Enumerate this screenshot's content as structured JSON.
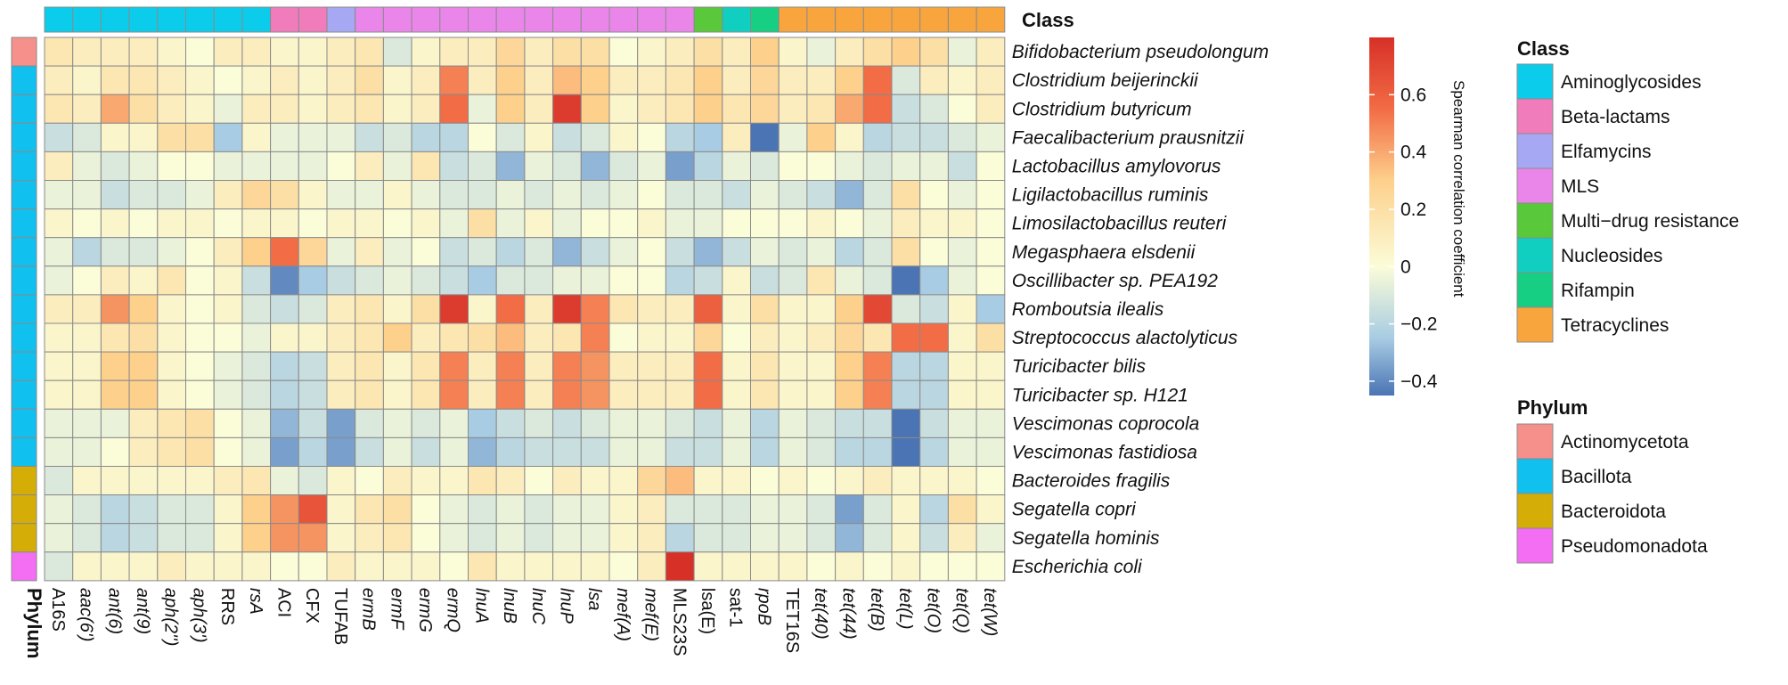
{
  "chart_data": {
    "type": "heatmap",
    "title": "",
    "columns": [
      "A16S",
      "aac(6')",
      "ant(6)",
      "ant(9)",
      "aph(2'')",
      "aph(3')",
      "RRS",
      "rsA",
      "ACI",
      "CFX",
      "TUFAB",
      "ermB",
      "ermF",
      "ermG",
      "ermQ",
      "lnuA",
      "lnuB",
      "lnuC",
      "lnuP",
      "lsa",
      "mef(A)",
      "mef(E)",
      "MLS23S",
      "lsa(E)",
      "sat-1",
      "rpoB",
      "TET16S",
      "tet(40)",
      "tet(44)",
      "tet(B)",
      "tet(L)",
      "tet(O)",
      "tet(Q)",
      "tet(W)"
    ],
    "column_italic": [
      false,
      true,
      true,
      true,
      true,
      true,
      false,
      true,
      false,
      false,
      false,
      true,
      true,
      true,
      true,
      true,
      true,
      true,
      true,
      true,
      true,
      true,
      false,
      false,
      false,
      true,
      false,
      true,
      true,
      true,
      true,
      true,
      true,
      true
    ],
    "column_class": [
      "Aminoglycosides",
      "Aminoglycosides",
      "Aminoglycosides",
      "Aminoglycosides",
      "Aminoglycosides",
      "Aminoglycosides",
      "Aminoglycosides",
      "Aminoglycosides",
      "Beta-lactams",
      "Beta-lactams",
      "Elfamycins",
      "MLS",
      "MLS",
      "MLS",
      "MLS",
      "MLS",
      "MLS",
      "MLS",
      "MLS",
      "MLS",
      "MLS",
      "MLS",
      "MLS",
      "Multi−drug resistance",
      "Nucleosides",
      "Rifampin",
      "Tetracyclines",
      "Tetracyclines",
      "Tetracyclines",
      "Tetracyclines",
      "Tetracyclines",
      "Tetracyclines",
      "Tetracyclines",
      "Tetracyclines"
    ],
    "rows": [
      "Bifidobacterium pseudolongum",
      "Clostridium beijerinckii",
      "Clostridium butyricum",
      "Faecalibacterium prausnitzii",
      "Lactobacillus amylovorus",
      "Ligilactobacillus ruminis",
      "Limosilactobacillus reuteri",
      "Megasphaera elsdenii",
      "Oscillibacter sp. PEA192",
      "Romboutsia ilealis",
      "Streptococcus alactolyticus",
      "Turicibacter bilis",
      "Turicibacter sp. H121",
      "Vescimonas coprocola",
      "Vescimonas fastidiosa",
      "Bacteroides fragilis",
      "Segatella copri",
      "Segatella hominis",
      "Escherichia coli"
    ],
    "row_phylum": [
      "Actinomycetota",
      "Bacillota",
      "Bacillota",
      "Bacillota",
      "Bacillota",
      "Bacillota",
      "Bacillota",
      "Bacillota",
      "Bacillota",
      "Bacillota",
      "Bacillota",
      "Bacillota",
      "Bacillota",
      "Bacillota",
      "Bacillota",
      "Bacteroidota",
      "Bacteroidota",
      "Bacteroidota",
      "Pseudomonadota"
    ],
    "values": [
      [
        0.15,
        0.1,
        0.1,
        0.1,
        0.05,
        0.0,
        0.1,
        0.1,
        0.05,
        0.05,
        0.1,
        0.15,
        -0.1,
        0.05,
        0.1,
        0.1,
        0.25,
        0.1,
        0.2,
        0.2,
        0.0,
        0.05,
        0.1,
        0.2,
        0.1,
        0.3,
        0.05,
        -0.05,
        0.1,
        0.2,
        0.3,
        0.2,
        -0.05,
        0.1
      ],
      [
        0.1,
        0.05,
        0.15,
        0.15,
        0.1,
        0.05,
        0.0,
        0.05,
        0.1,
        0.05,
        0.1,
        0.2,
        0.05,
        0.1,
        0.5,
        0.1,
        0.3,
        0.1,
        0.35,
        0.3,
        0.1,
        0.1,
        0.15,
        0.3,
        0.1,
        0.25,
        0.1,
        0.1,
        0.3,
        0.55,
        -0.1,
        0.1,
        0.05,
        0.1
      ],
      [
        0.15,
        0.1,
        0.4,
        0.2,
        0.1,
        0.05,
        -0.05,
        0.1,
        0.1,
        0.05,
        0.1,
        0.15,
        0.05,
        0.1,
        0.55,
        -0.05,
        0.3,
        0.1,
        0.75,
        0.3,
        0.05,
        0.1,
        0.15,
        0.3,
        0.15,
        0.25,
        0.1,
        0.15,
        0.4,
        0.55,
        -0.15,
        -0.1,
        0.0,
        0.1
      ],
      [
        -0.15,
        -0.1,
        0.05,
        0.05,
        0.2,
        0.2,
        -0.25,
        0.05,
        -0.05,
        -0.05,
        -0.05,
        -0.15,
        -0.1,
        -0.2,
        -0.2,
        0.0,
        -0.1,
        0.05,
        -0.15,
        -0.1,
        0.05,
        0.0,
        -0.2,
        -0.25,
        0.1,
        -0.45,
        -0.05,
        0.3,
        0.05,
        -0.2,
        -0.15,
        -0.15,
        -0.1,
        -0.05
      ],
      [
        0.1,
        -0.05,
        -0.1,
        -0.05,
        0.0,
        0.0,
        -0.05,
        -0.05,
        -0.05,
        -0.05,
        0.0,
        0.1,
        -0.05,
        0.15,
        -0.15,
        -0.1,
        -0.3,
        -0.05,
        -0.1,
        -0.3,
        -0.1,
        -0.05,
        -0.35,
        -0.2,
        -0.05,
        -0.1,
        0.0,
        0.0,
        -0.05,
        -0.1,
        -0.05,
        -0.05,
        -0.15,
        0.0
      ],
      [
        -0.05,
        -0.05,
        -0.15,
        -0.1,
        -0.1,
        -0.05,
        0.1,
        0.25,
        0.2,
        0.05,
        -0.05,
        -0.05,
        0.05,
        -0.05,
        -0.1,
        -0.1,
        -0.05,
        -0.1,
        -0.05,
        -0.1,
        -0.05,
        0.0,
        -0.1,
        -0.1,
        -0.15,
        -0.05,
        -0.1,
        -0.15,
        -0.3,
        -0.1,
        0.2,
        0.0,
        -0.05,
        0.0
      ],
      [
        0.05,
        0.0,
        0.05,
        0.0,
        0.05,
        0.05,
        0.0,
        0.05,
        0.05,
        0.0,
        0.05,
        0.05,
        0.0,
        0.05,
        -0.05,
        0.2,
        -0.05,
        0.05,
        -0.05,
        0.0,
        0.0,
        0.05,
        -0.05,
        -0.05,
        0.0,
        0.0,
        0.0,
        0.05,
        0.0,
        -0.05,
        0.1,
        0.05,
        0.05,
        0.0
      ],
      [
        -0.05,
        -0.2,
        -0.1,
        -0.1,
        -0.05,
        0.0,
        0.1,
        0.3,
        0.55,
        0.25,
        -0.05,
        0.1,
        -0.05,
        0.0,
        -0.15,
        -0.1,
        -0.2,
        -0.1,
        -0.3,
        -0.15,
        -0.05,
        0.0,
        -0.15,
        -0.3,
        -0.15,
        -0.05,
        -0.1,
        -0.05,
        -0.2,
        -0.1,
        0.2,
        0.0,
        -0.05,
        0.0
      ],
      [
        -0.05,
        0.0,
        0.1,
        0.05,
        0.15,
        0.0,
        0.05,
        -0.15,
        -0.4,
        -0.25,
        -0.15,
        -0.1,
        -0.05,
        -0.1,
        -0.15,
        -0.25,
        -0.1,
        -0.1,
        -0.05,
        -0.05,
        0.0,
        0.0,
        -0.2,
        -0.15,
        0.05,
        -0.15,
        -0.1,
        0.15,
        -0.05,
        -0.1,
        -0.45,
        -0.25,
        -0.05,
        0.0
      ],
      [
        0.1,
        0.1,
        0.45,
        0.3,
        0.05,
        0.0,
        0.05,
        -0.1,
        -0.15,
        -0.1,
        0.1,
        0.15,
        0.05,
        0.2,
        0.75,
        0.05,
        0.55,
        0.1,
        0.75,
        0.5,
        0.15,
        0.1,
        0.1,
        0.6,
        0.05,
        0.2,
        0.05,
        0.05,
        0.3,
        0.7,
        -0.1,
        -0.15,
        0.05,
        -0.25
      ],
      [
        0.05,
        0.05,
        0.15,
        0.2,
        0.05,
        0.0,
        0.0,
        -0.05,
        0.05,
        0.05,
        0.1,
        0.15,
        0.3,
        0.1,
        0.15,
        0.2,
        0.35,
        0.1,
        0.15,
        0.5,
        0.0,
        0.05,
        0.05,
        0.25,
        0.0,
        0.1,
        0.05,
        0.1,
        0.25,
        0.15,
        0.55,
        0.55,
        0.05,
        0.2
      ],
      [
        0.05,
        0.05,
        0.3,
        0.3,
        0.05,
        0.0,
        -0.05,
        -0.1,
        -0.2,
        -0.15,
        0.1,
        0.15,
        0.05,
        0.15,
        0.5,
        0.1,
        0.5,
        0.1,
        0.5,
        0.45,
        0.1,
        0.1,
        0.1,
        0.55,
        0.05,
        0.15,
        0.05,
        0.05,
        0.3,
        0.5,
        -0.2,
        -0.2,
        0.05,
        0.05
      ],
      [
        0.05,
        0.05,
        0.3,
        0.3,
        0.05,
        0.0,
        -0.05,
        -0.1,
        -0.2,
        -0.15,
        0.1,
        0.15,
        0.05,
        0.15,
        0.5,
        0.1,
        0.5,
        0.1,
        0.5,
        0.45,
        0.1,
        0.1,
        0.1,
        0.55,
        0.05,
        0.15,
        0.05,
        0.05,
        0.3,
        0.5,
        -0.2,
        -0.2,
        0.05,
        0.05
      ],
      [
        -0.05,
        -0.05,
        -0.05,
        0.1,
        0.15,
        0.2,
        0.0,
        -0.05,
        -0.3,
        -0.15,
        -0.35,
        -0.1,
        -0.05,
        -0.1,
        -0.05,
        -0.25,
        -0.15,
        -0.1,
        -0.15,
        -0.1,
        -0.05,
        -0.05,
        -0.1,
        -0.15,
        -0.05,
        -0.2,
        -0.05,
        -0.1,
        -0.15,
        -0.15,
        -0.45,
        -0.15,
        -0.05,
        -0.05
      ],
      [
        -0.05,
        -0.05,
        0.0,
        0.1,
        0.15,
        0.2,
        0.0,
        -0.05,
        -0.35,
        -0.2,
        -0.35,
        -0.15,
        -0.05,
        -0.15,
        -0.05,
        -0.3,
        -0.2,
        -0.15,
        -0.15,
        -0.15,
        -0.05,
        -0.05,
        -0.15,
        -0.15,
        -0.05,
        -0.2,
        -0.05,
        -0.1,
        -0.2,
        -0.2,
        -0.45,
        -0.2,
        -0.05,
        -0.05
      ],
      [
        -0.1,
        0.05,
        0.05,
        0.05,
        0.05,
        0.05,
        0.1,
        0.15,
        -0.05,
        -0.1,
        0.05,
        0.0,
        0.1,
        0.05,
        0.05,
        0.15,
        0.1,
        0.0,
        0.1,
        0.05,
        0.05,
        0.25,
        0.35,
        0.05,
        0.05,
        0.0,
        0.05,
        0.0,
        0.05,
        0.1,
        0.05,
        0.05,
        0.05,
        0.0
      ],
      [
        -0.05,
        -0.1,
        -0.2,
        -0.15,
        -0.1,
        -0.1,
        0.05,
        0.3,
        0.45,
        0.65,
        0.05,
        0.15,
        0.2,
        0.0,
        -0.05,
        -0.1,
        -0.05,
        -0.1,
        -0.05,
        -0.05,
        0.05,
        0.1,
        -0.1,
        -0.1,
        -0.1,
        -0.05,
        -0.05,
        -0.1,
        -0.35,
        -0.1,
        0.05,
        -0.2,
        0.2,
        0.05
      ],
      [
        -0.05,
        -0.1,
        -0.2,
        -0.15,
        -0.1,
        -0.1,
        0.05,
        0.3,
        0.45,
        0.45,
        0.05,
        0.1,
        0.15,
        0.0,
        -0.05,
        -0.1,
        -0.05,
        -0.1,
        -0.05,
        -0.05,
        0.05,
        0.1,
        -0.2,
        -0.1,
        -0.1,
        -0.05,
        -0.05,
        -0.1,
        -0.3,
        -0.1,
        0.05,
        -0.15,
        0.1,
        -0.05
      ],
      [
        -0.1,
        0.05,
        0.05,
        0.05,
        0.1,
        0.05,
        0.05,
        0.05,
        0.0,
        0.0,
        0.1,
        0.05,
        0.05,
        0.05,
        0.0,
        0.15,
        0.05,
        0.05,
        0.05,
        0.05,
        0.0,
        0.1,
        0.8,
        0.05,
        0.05,
        0.05,
        0.05,
        0.0,
        0.05,
        0.0,
        0.05,
        0.0,
        0.0,
        0.0
      ]
    ],
    "colorbar": {
      "label": "Spearman correlation coefficient",
      "min": -0.45,
      "max": 0.8,
      "ticks": [
        0.6,
        0.4,
        0.2,
        0,
        -0.2,
        -0.4
      ],
      "tick_labels": [
        "0.6",
        "0.4",
        "0.2",
        "0",
        "−0.2",
        "−0.4"
      ]
    },
    "annotations": {
      "column_track_label": "Class",
      "row_track_label": "Phylum"
    }
  },
  "legends": {
    "class": {
      "title": "Class",
      "items": [
        {
          "label": "Aminoglycosides",
          "color": "#0bcdeb"
        },
        {
          "label": "Beta-lactams",
          "color": "#f07cbc"
        },
        {
          "label": "Elfamycins",
          "color": "#a6a8f4"
        },
        {
          "label": "MLS",
          "color": "#ea86ea"
        },
        {
          "label": "Multi−drug resistance",
          "color": "#59c83a"
        },
        {
          "label": "Nucleosides",
          "color": "#11cfc0"
        },
        {
          "label": "Rifampin",
          "color": "#17cf83"
        },
        {
          "label": "Tetracyclines",
          "color": "#f9a53e"
        }
      ]
    },
    "phylum": {
      "title": "Phylum",
      "items": [
        {
          "label": "Actinomycetota",
          "color": "#f5908a"
        },
        {
          "label": "Bacillota",
          "color": "#10c0ef"
        },
        {
          "label": "Bacteroidota",
          "color": "#d4ad06"
        },
        {
          "label": "Pseudomonadota",
          "color": "#f36ef3"
        }
      ]
    }
  },
  "palette": {
    "negative": "#4a74b4",
    "mid_negative": "#a8cce3",
    "zero": "#fbfcd8",
    "mid_positive": "#fdd08c",
    "high_positive": "#f26c45",
    "positive": "#d73027",
    "grid_line": "#8a8a8a"
  }
}
